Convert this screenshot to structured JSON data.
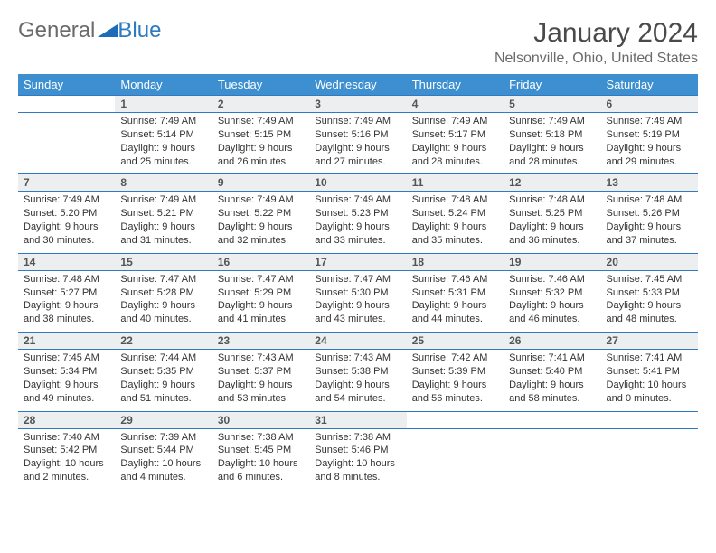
{
  "brand": {
    "part1": "General",
    "part2": "Blue"
  },
  "title": "January 2024",
  "location": "Nelsonville, Ohio, United States",
  "colors": {
    "header_bg": "#3d8fcf",
    "header_text": "#ffffff",
    "row_border": "#2f7ac0",
    "daynum_bg": "#eceeef",
    "text": "#333333",
    "logo_gray": "#6a6a6a",
    "logo_blue": "#2f7ac0"
  },
  "weekdays": [
    "Sunday",
    "Monday",
    "Tuesday",
    "Wednesday",
    "Thursday",
    "Friday",
    "Saturday"
  ],
  "weeks": [
    [
      null,
      {
        "d": "1",
        "sr": "Sunrise: 7:49 AM",
        "ss": "Sunset: 5:14 PM",
        "dl1": "Daylight: 9 hours",
        "dl2": "and 25 minutes."
      },
      {
        "d": "2",
        "sr": "Sunrise: 7:49 AM",
        "ss": "Sunset: 5:15 PM",
        "dl1": "Daylight: 9 hours",
        "dl2": "and 26 minutes."
      },
      {
        "d": "3",
        "sr": "Sunrise: 7:49 AM",
        "ss": "Sunset: 5:16 PM",
        "dl1": "Daylight: 9 hours",
        "dl2": "and 27 minutes."
      },
      {
        "d": "4",
        "sr": "Sunrise: 7:49 AM",
        "ss": "Sunset: 5:17 PM",
        "dl1": "Daylight: 9 hours",
        "dl2": "and 28 minutes."
      },
      {
        "d": "5",
        "sr": "Sunrise: 7:49 AM",
        "ss": "Sunset: 5:18 PM",
        "dl1": "Daylight: 9 hours",
        "dl2": "and 28 minutes."
      },
      {
        "d": "6",
        "sr": "Sunrise: 7:49 AM",
        "ss": "Sunset: 5:19 PM",
        "dl1": "Daylight: 9 hours",
        "dl2": "and 29 minutes."
      }
    ],
    [
      {
        "d": "7",
        "sr": "Sunrise: 7:49 AM",
        "ss": "Sunset: 5:20 PM",
        "dl1": "Daylight: 9 hours",
        "dl2": "and 30 minutes."
      },
      {
        "d": "8",
        "sr": "Sunrise: 7:49 AM",
        "ss": "Sunset: 5:21 PM",
        "dl1": "Daylight: 9 hours",
        "dl2": "and 31 minutes."
      },
      {
        "d": "9",
        "sr": "Sunrise: 7:49 AM",
        "ss": "Sunset: 5:22 PM",
        "dl1": "Daylight: 9 hours",
        "dl2": "and 32 minutes."
      },
      {
        "d": "10",
        "sr": "Sunrise: 7:49 AM",
        "ss": "Sunset: 5:23 PM",
        "dl1": "Daylight: 9 hours",
        "dl2": "and 33 minutes."
      },
      {
        "d": "11",
        "sr": "Sunrise: 7:48 AM",
        "ss": "Sunset: 5:24 PM",
        "dl1": "Daylight: 9 hours",
        "dl2": "and 35 minutes."
      },
      {
        "d": "12",
        "sr": "Sunrise: 7:48 AM",
        "ss": "Sunset: 5:25 PM",
        "dl1": "Daylight: 9 hours",
        "dl2": "and 36 minutes."
      },
      {
        "d": "13",
        "sr": "Sunrise: 7:48 AM",
        "ss": "Sunset: 5:26 PM",
        "dl1": "Daylight: 9 hours",
        "dl2": "and 37 minutes."
      }
    ],
    [
      {
        "d": "14",
        "sr": "Sunrise: 7:48 AM",
        "ss": "Sunset: 5:27 PM",
        "dl1": "Daylight: 9 hours",
        "dl2": "and 38 minutes."
      },
      {
        "d": "15",
        "sr": "Sunrise: 7:47 AM",
        "ss": "Sunset: 5:28 PM",
        "dl1": "Daylight: 9 hours",
        "dl2": "and 40 minutes."
      },
      {
        "d": "16",
        "sr": "Sunrise: 7:47 AM",
        "ss": "Sunset: 5:29 PM",
        "dl1": "Daylight: 9 hours",
        "dl2": "and 41 minutes."
      },
      {
        "d": "17",
        "sr": "Sunrise: 7:47 AM",
        "ss": "Sunset: 5:30 PM",
        "dl1": "Daylight: 9 hours",
        "dl2": "and 43 minutes."
      },
      {
        "d": "18",
        "sr": "Sunrise: 7:46 AM",
        "ss": "Sunset: 5:31 PM",
        "dl1": "Daylight: 9 hours",
        "dl2": "and 44 minutes."
      },
      {
        "d": "19",
        "sr": "Sunrise: 7:46 AM",
        "ss": "Sunset: 5:32 PM",
        "dl1": "Daylight: 9 hours",
        "dl2": "and 46 minutes."
      },
      {
        "d": "20",
        "sr": "Sunrise: 7:45 AM",
        "ss": "Sunset: 5:33 PM",
        "dl1": "Daylight: 9 hours",
        "dl2": "and 48 minutes."
      }
    ],
    [
      {
        "d": "21",
        "sr": "Sunrise: 7:45 AM",
        "ss": "Sunset: 5:34 PM",
        "dl1": "Daylight: 9 hours",
        "dl2": "and 49 minutes."
      },
      {
        "d": "22",
        "sr": "Sunrise: 7:44 AM",
        "ss": "Sunset: 5:35 PM",
        "dl1": "Daylight: 9 hours",
        "dl2": "and 51 minutes."
      },
      {
        "d": "23",
        "sr": "Sunrise: 7:43 AM",
        "ss": "Sunset: 5:37 PM",
        "dl1": "Daylight: 9 hours",
        "dl2": "and 53 minutes."
      },
      {
        "d": "24",
        "sr": "Sunrise: 7:43 AM",
        "ss": "Sunset: 5:38 PM",
        "dl1": "Daylight: 9 hours",
        "dl2": "and 54 minutes."
      },
      {
        "d": "25",
        "sr": "Sunrise: 7:42 AM",
        "ss": "Sunset: 5:39 PM",
        "dl1": "Daylight: 9 hours",
        "dl2": "and 56 minutes."
      },
      {
        "d": "26",
        "sr": "Sunrise: 7:41 AM",
        "ss": "Sunset: 5:40 PM",
        "dl1": "Daylight: 9 hours",
        "dl2": "and 58 minutes."
      },
      {
        "d": "27",
        "sr": "Sunrise: 7:41 AM",
        "ss": "Sunset: 5:41 PM",
        "dl1": "Daylight: 10 hours",
        "dl2": "and 0 minutes."
      }
    ],
    [
      {
        "d": "28",
        "sr": "Sunrise: 7:40 AM",
        "ss": "Sunset: 5:42 PM",
        "dl1": "Daylight: 10 hours",
        "dl2": "and 2 minutes."
      },
      {
        "d": "29",
        "sr": "Sunrise: 7:39 AM",
        "ss": "Sunset: 5:44 PM",
        "dl1": "Daylight: 10 hours",
        "dl2": "and 4 minutes."
      },
      {
        "d": "30",
        "sr": "Sunrise: 7:38 AM",
        "ss": "Sunset: 5:45 PM",
        "dl1": "Daylight: 10 hours",
        "dl2": "and 6 minutes."
      },
      {
        "d": "31",
        "sr": "Sunrise: 7:38 AM",
        "ss": "Sunset: 5:46 PM",
        "dl1": "Daylight: 10 hours",
        "dl2": "and 8 minutes."
      },
      null,
      null,
      null
    ]
  ]
}
